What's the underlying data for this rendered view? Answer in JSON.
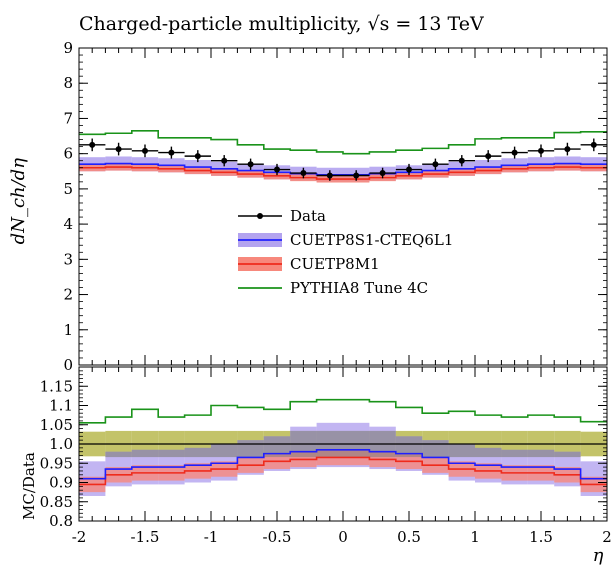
{
  "title_prefix": "Charged-particle multiplicity, ",
  "title_suffix": " = 13 TeV",
  "title_root_symbol": "√s",
  "top_ylabel": "dN_ch/dη",
  "bottom_ylabel": "MC/Data",
  "xlabel": "η",
  "colors": {
    "data": "#000000",
    "cuetp8s1": "#1f1fff",
    "cuetp8s1_band": "#b3a3ef",
    "cuetp8m1": "#ef2b1c",
    "cuetp8m1_band": "#f7887c",
    "pythia": "#1a931a",
    "ratio_stat_band": "#b8b84f",
    "ratio_grey_band": "#808080"
  },
  "chart_data": [
    {
      "type": "line",
      "panel": "top",
      "x_edges": [
        -2.0,
        -1.8,
        -1.6,
        -1.4,
        -1.2,
        -1.0,
        -0.8,
        -0.6,
        -0.4,
        -0.2,
        0.0,
        0.2,
        0.4,
        0.6,
        0.8,
        1.0,
        1.2,
        1.4,
        1.6,
        1.8,
        2.0
      ],
      "xlim": [
        -2,
        2
      ],
      "ylim": [
        0,
        9
      ],
      "yticks": [
        0,
        1,
        2,
        3,
        4,
        5,
        6,
        7,
        8,
        9
      ],
      "series": [
        {
          "name": "Data",
          "key": "data",
          "style": "points",
          "values": [
            6.25,
            6.13,
            6.08,
            6.03,
            5.93,
            5.8,
            5.7,
            5.55,
            5.45,
            5.38,
            5.38,
            5.45,
            5.55,
            5.7,
            5.8,
            5.93,
            6.03,
            6.08,
            6.13,
            6.25
          ],
          "errors": [
            0.18,
            0.18,
            0.18,
            0.17,
            0.17,
            0.16,
            0.16,
            0.16,
            0.15,
            0.15,
            0.15,
            0.15,
            0.16,
            0.16,
            0.16,
            0.17,
            0.17,
            0.18,
            0.18,
            0.18
          ]
        },
        {
          "name": "CUETP8S1-CTEQ6L1",
          "key": "cuetp8s1",
          "style": "band",
          "values": [
            5.7,
            5.72,
            5.7,
            5.67,
            5.62,
            5.57,
            5.52,
            5.47,
            5.43,
            5.4,
            5.4,
            5.43,
            5.47,
            5.52,
            5.57,
            5.62,
            5.67,
            5.7,
            5.72,
            5.7
          ],
          "band_low": [
            5.5,
            5.52,
            5.5,
            5.47,
            5.42,
            5.37,
            5.32,
            5.27,
            5.23,
            5.2,
            5.2,
            5.23,
            5.27,
            5.32,
            5.37,
            5.42,
            5.47,
            5.5,
            5.52,
            5.5
          ],
          "band_high": [
            5.9,
            5.92,
            5.9,
            5.87,
            5.82,
            5.77,
            5.72,
            5.67,
            5.63,
            5.6,
            5.6,
            5.63,
            5.67,
            5.72,
            5.77,
            5.82,
            5.87,
            5.9,
            5.92,
            5.9
          ]
        },
        {
          "name": "CUETP8M1",
          "key": "cuetp8m1",
          "style": "band",
          "values": [
            5.6,
            5.62,
            5.6,
            5.57,
            5.52,
            5.47,
            5.42,
            5.37,
            5.32,
            5.28,
            5.28,
            5.32,
            5.37,
            5.42,
            5.47,
            5.52,
            5.57,
            5.6,
            5.62,
            5.6
          ],
          "band_low": [
            5.5,
            5.52,
            5.5,
            5.47,
            5.42,
            5.37,
            5.32,
            5.27,
            5.22,
            5.18,
            5.18,
            5.22,
            5.27,
            5.32,
            5.37,
            5.42,
            5.47,
            5.5,
            5.52,
            5.5
          ],
          "band_high": [
            5.7,
            5.72,
            5.7,
            5.67,
            5.62,
            5.57,
            5.52,
            5.47,
            5.42,
            5.38,
            5.38,
            5.42,
            5.47,
            5.52,
            5.57,
            5.62,
            5.67,
            5.7,
            5.72,
            5.7
          ]
        },
        {
          "name": "PYTHIA8 Tune 4C",
          "key": "pythia",
          "style": "step",
          "values": [
            6.55,
            6.58,
            6.65,
            6.45,
            6.45,
            6.4,
            6.25,
            6.13,
            6.1,
            6.05,
            6.0,
            6.05,
            6.1,
            6.15,
            6.25,
            6.42,
            6.45,
            6.45,
            6.6,
            6.62
          ]
        }
      ]
    },
    {
      "type": "line",
      "panel": "bottom",
      "x_edges": [
        -2.0,
        -1.8,
        -1.6,
        -1.4,
        -1.2,
        -1.0,
        -0.8,
        -0.6,
        -0.4,
        -0.2,
        0.0,
        0.2,
        0.4,
        0.6,
        0.8,
        1.0,
        1.2,
        1.4,
        1.6,
        1.8,
        2.0
      ],
      "xlim": [
        -2,
        2
      ],
      "ylim": [
        0.8,
        1.2
      ],
      "yticks": [
        0.8,
        0.85,
        0.9,
        0.95,
        1.0,
        1.05,
        1.1,
        1.15
      ],
      "ytick_labels": [
        "0.8",
        "0.85",
        "0.9",
        "0.95",
        "1.0",
        "1.05",
        "1.1",
        "1.15"
      ],
      "xticks": [
        -2,
        -1.5,
        -1,
        -0.5,
        0,
        0.5,
        1,
        1.5,
        2
      ],
      "xtick_labels": [
        "-2",
        "-1.5",
        "-1",
        "-0.5",
        "0",
        "0.5",
        "1",
        "1.5",
        "2"
      ],
      "series": [
        {
          "name": "Data",
          "key": "data",
          "style": "line",
          "values": [
            1.0,
            1.0,
            1.0,
            1.0,
            1.0,
            1.0,
            1.0,
            1.0,
            1.0,
            1.0,
            1.0,
            1.0,
            1.0,
            1.0,
            1.0,
            1.0,
            1.0,
            1.0,
            1.0,
            1.0
          ],
          "band_low": [
            0.968,
            0.966,
            0.966,
            0.966,
            0.966,
            0.966,
            0.966,
            0.966,
            0.966,
            0.966,
            0.966,
            0.966,
            0.966,
            0.966,
            0.966,
            0.966,
            0.966,
            0.966,
            0.966,
            0.968
          ],
          "band_high": [
            1.032,
            1.034,
            1.034,
            1.034,
            1.034,
            1.034,
            1.034,
            1.034,
            1.034,
            1.034,
            1.034,
            1.034,
            1.034,
            1.034,
            1.034,
            1.034,
            1.034,
            1.034,
            1.034,
            1.032
          ]
        },
        {
          "name": "CUETP8S1-CTEQ6L1",
          "key": "cuetp8s1",
          "style": "band",
          "values": [
            0.91,
            0.935,
            0.94,
            0.94,
            0.945,
            0.95,
            0.965,
            0.975,
            0.98,
            0.985,
            0.985,
            0.98,
            0.975,
            0.965,
            0.95,
            0.945,
            0.94,
            0.94,
            0.935,
            0.91
          ],
          "band_low": [
            0.865,
            0.89,
            0.895,
            0.895,
            0.9,
            0.905,
            0.92,
            0.93,
            0.935,
            0.94,
            0.94,
            0.935,
            0.93,
            0.92,
            0.905,
            0.9,
            0.895,
            0.895,
            0.89,
            0.865
          ],
          "band_high": [
            0.955,
            0.98,
            0.985,
            0.985,
            0.99,
            1.0,
            1.01,
            1.02,
            1.045,
            1.055,
            1.055,
            1.045,
            1.02,
            1.01,
            1.0,
            0.99,
            0.985,
            0.985,
            0.98,
            0.955
          ]
        },
        {
          "name": "CUETP8M1",
          "key": "cuetp8m1",
          "style": "band",
          "values": [
            0.895,
            0.92,
            0.925,
            0.925,
            0.93,
            0.935,
            0.945,
            0.955,
            0.96,
            0.965,
            0.965,
            0.96,
            0.955,
            0.945,
            0.935,
            0.93,
            0.925,
            0.925,
            0.92,
            0.895
          ],
          "band_low": [
            0.875,
            0.9,
            0.905,
            0.905,
            0.91,
            0.915,
            0.925,
            0.935,
            0.94,
            0.945,
            0.945,
            0.94,
            0.935,
            0.925,
            0.915,
            0.91,
            0.905,
            0.905,
            0.9,
            0.875
          ],
          "band_high": [
            0.915,
            0.94,
            0.945,
            0.945,
            0.95,
            0.955,
            0.965,
            0.975,
            0.98,
            0.985,
            0.985,
            0.98,
            0.975,
            0.965,
            0.955,
            0.95,
            0.945,
            0.945,
            0.94,
            0.915
          ]
        },
        {
          "name": "PYTHIA8 Tune 4C",
          "key": "pythia",
          "style": "step",
          "values": [
            1.055,
            1.07,
            1.09,
            1.07,
            1.075,
            1.1,
            1.095,
            1.09,
            1.11,
            1.115,
            1.115,
            1.11,
            1.095,
            1.08,
            1.085,
            1.075,
            1.07,
            1.075,
            1.07,
            1.058
          ]
        }
      ]
    }
  ],
  "legend": [
    {
      "label": "Data",
      "key": "data"
    },
    {
      "label": "CUETP8S1-CTEQ6L1",
      "key": "cuetp8s1"
    },
    {
      "label": "CUETP8M1",
      "key": "cuetp8m1"
    },
    {
      "label": "PYTHIA8 Tune 4C",
      "key": "pythia"
    }
  ]
}
